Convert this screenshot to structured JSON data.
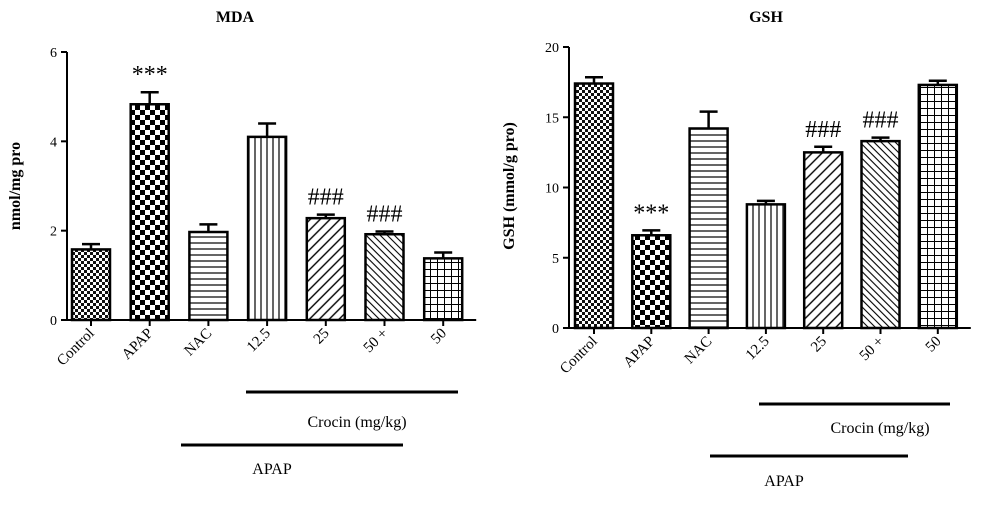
{
  "chart_data": [
    {
      "type": "bar",
      "title": "MDA",
      "ylabel": "nmol/mg pro",
      "xlabel": "",
      "ylim": [
        0,
        6
      ],
      "yticks": [
        "0",
        "2",
        "4",
        "6"
      ],
      "categories": [
        "Control",
        "APAP",
        "NAC",
        "12.5",
        "25",
        "50 +",
        "50"
      ],
      "values": [
        1.58,
        4.83,
        1.97,
        4.1,
        2.28,
        1.92,
        1.38
      ],
      "errors": [
        0.12,
        0.27,
        0.17,
        0.3,
        0.08,
        0.06,
        0.13
      ],
      "annotations": [
        "",
        "***",
        "",
        "",
        "###",
        "###",
        ""
      ],
      "group_labels": {
        "crocin": "Crocin (mg/kg)",
        "apap": "APAP"
      },
      "grid": false
    },
    {
      "type": "bar",
      "title": "GSH",
      "ylabel": "GSH (mmol/g pro)",
      "xlabel": "",
      "ylim": [
        0,
        20
      ],
      "yticks": [
        "0",
        "5",
        "10",
        "15",
        "20"
      ],
      "categories": [
        "Control",
        "APAP",
        "NAC",
        "12.5",
        "25",
        "50 +",
        "50"
      ],
      "values": [
        17.4,
        6.6,
        14.2,
        8.8,
        12.5,
        13.3,
        17.3
      ],
      "errors": [
        0.45,
        0.35,
        1.2,
        0.25,
        0.4,
        0.25,
        0.3
      ],
      "annotations": [
        "",
        "***",
        "",
        "",
        "###",
        "###",
        ""
      ],
      "group_labels": {
        "crocin": "Crocin (mg/kg)",
        "apap": "APAP"
      },
      "grid": false
    }
  ]
}
